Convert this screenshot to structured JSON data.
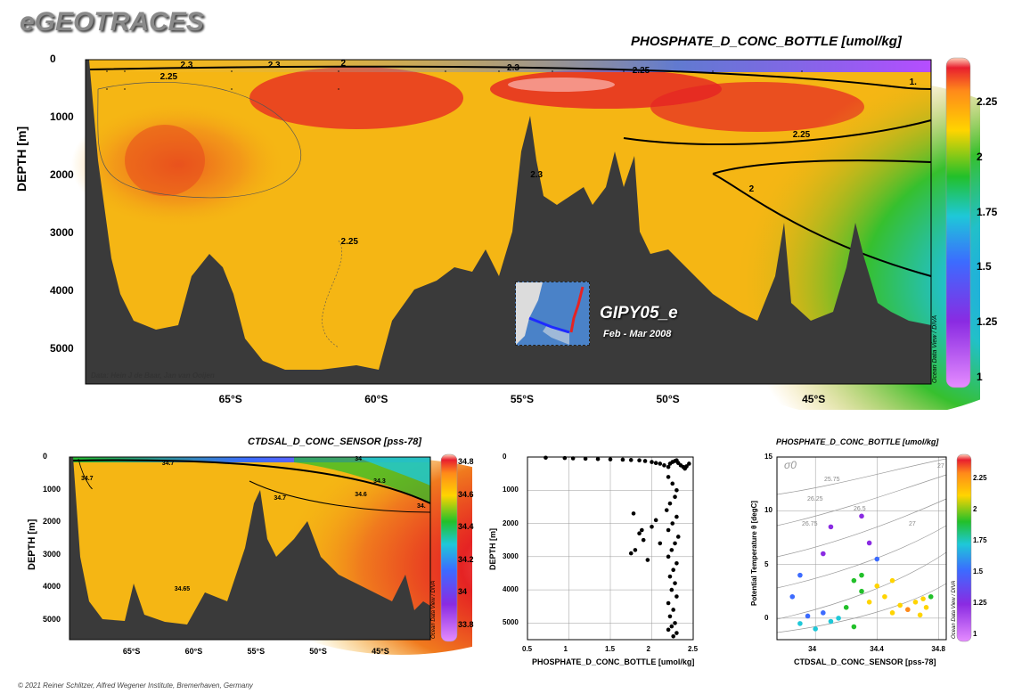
{
  "brand": "eGEOTRACES",
  "credit": "© 2021 Reiner Schlitzer, Alfred Wegener Institute, Bremerhaven, Germany",
  "odv_label": "Ocean Data View / DIVA",
  "colors": {
    "ocean_floor": "#3a3a3a",
    "contour": "#000000",
    "grid": "#222222"
  },
  "main": {
    "title": "PHOSPHATE_D_CONC_BOTTLE [umol/kg]",
    "ylabel": "DEPTH [m]",
    "data_credit": "Data: Hein J de Baar, Jan van Ooijen",
    "inset_label": "GIPY05_e",
    "inset_date": "Feb - Mar 2008"
  },
  "bl": {
    "title": "CTDSAL_D_CONC_SENSOR [pss-78]",
    "ylabel": "DEPTH [m]"
  },
  "bm": {
    "xlabel": "PHOSPHATE_D_CONC_BOTTLE [umol/kg]",
    "ylabel": "DEPTH [m]"
  },
  "br": {
    "title": "PHOSPHATE_D_CONC_BOTTLE [umol/kg]",
    "xlabel": "CTDSAL_D_CONC_SENSOR [pss-78]",
    "ylabel": "Potential Temperature θ [degC]",
    "sigma": "σ0"
  },
  "chart_data": [
    {
      "type": "heatmap",
      "title": "PHOSPHATE_D_CONC_BOTTLE [umol/kg]",
      "ylabel": "DEPTH [m]",
      "x_ticks": [
        "65°S",
        "60°S",
        "55°S",
        "50°S",
        "45°S"
      ],
      "x_values": [
        -65,
        -60,
        -55,
        -50,
        -45
      ],
      "xlim": [
        -70,
        -41
      ],
      "y_ticks": [
        0,
        1000,
        2000,
        3000,
        4000,
        5000
      ],
      "ylim": [
        5600,
        0
      ],
      "colorbar": {
        "ticks": [
          1,
          1.25,
          1.5,
          1.75,
          2,
          2.25
        ],
        "range": [
          0.95,
          2.45
        ]
      },
      "contour_labels": [
        {
          "text": "2.3",
          "lat": -66.5,
          "depth": 100
        },
        {
          "text": "2.25",
          "lat": -67.2,
          "depth": 300
        },
        {
          "text": "2.3",
          "lat": -63.5,
          "depth": 100
        },
        {
          "text": "2",
          "lat": -61,
          "depth": 80
        },
        {
          "text": "2.3",
          "lat": -55.3,
          "depth": 150
        },
        {
          "text": "2.25",
          "lat": -51,
          "depth": 200
        },
        {
          "text": "1.",
          "lat": -41.5,
          "depth": 400
        },
        {
          "text": "2.25",
          "lat": -45.5,
          "depth": 1300
        },
        {
          "text": "2",
          "lat": -47,
          "depth": 2250
        },
        {
          "text": "2.3",
          "lat": -54.5,
          "depth": 2000
        },
        {
          "text": "2.25",
          "lat": -61,
          "depth": 3150
        }
      ]
    },
    {
      "type": "heatmap",
      "title": "CTDSAL_D_CONC_SENSOR [pss-78]",
      "ylabel": "DEPTH [m]",
      "x_ticks": [
        "65°S",
        "60°S",
        "55°S",
        "50°S",
        "45°S"
      ],
      "x_values": [
        -65,
        -60,
        -55,
        -50,
        -45
      ],
      "xlim": [
        -70,
        -41
      ],
      "y_ticks": [
        0,
        1000,
        2000,
        3000,
        4000,
        5000
      ],
      "ylim": [
        5600,
        0
      ],
      "colorbar": {
        "ticks": [
          33.8,
          34,
          34.2,
          34.4,
          34.6,
          34.8
        ],
        "range": [
          33.7,
          34.85
        ]
      },
      "contour_labels": [
        {
          "text": "34.7",
          "lat": -68.5,
          "depth": 700
        },
        {
          "text": "34.7",
          "lat": -62,
          "depth": 250
        },
        {
          "text": "34.7",
          "lat": -53,
          "depth": 1300
        },
        {
          "text": "34.6",
          "lat": -46.5,
          "depth": 1200
        },
        {
          "text": "34.3",
          "lat": -45,
          "depth": 800
        },
        {
          "text": "34",
          "lat": -46.5,
          "depth": 100
        },
        {
          "text": "34.",
          "lat": -41.5,
          "depth": 1550
        },
        {
          "text": "34.65",
          "lat": -61,
          "depth": 4100
        }
      ]
    },
    {
      "type": "scatter",
      "xlabel": "PHOSPHATE_D_CONC_BOTTLE [umol/kg]",
      "ylabel": "DEPTH [m]",
      "x_ticks": [
        0.5,
        1,
        1.5,
        2,
        2.5
      ],
      "xlim": [
        0.5,
        2.5
      ],
      "y_ticks": [
        0,
        1000,
        2000,
        3000,
        4000,
        5000
      ],
      "ylim": [
        5500,
        0
      ],
      "series": [
        {
          "x": [
            0.72,
            0.95,
            1.05,
            1.2,
            1.35,
            1.5,
            1.65,
            1.75,
            1.85,
            1.92,
            2.0,
            2.05,
            2.1,
            2.15,
            2.2,
            2.22,
            2.25,
            2.28,
            2.3,
            2.32,
            2.35,
            2.38,
            2.4,
            2.42,
            2.45
          ],
          "y": [
            20,
            30,
            40,
            50,
            60,
            70,
            80,
            90,
            100,
            120,
            150,
            180,
            200,
            250,
            300,
            200,
            150,
            120,
            100,
            180,
            250,
            300,
            350,
            280,
            200
          ]
        },
        {
          "x": [
            2.2,
            2.25,
            2.3,
            2.28,
            2.22,
            2.18,
            2.3,
            2.25,
            2.2,
            2.32,
            2.28,
            2.24,
            2.2,
            2.3,
            2.26,
            2.22,
            2.28,
            2.24,
            2.3,
            2.2,
            2.26,
            2.22,
            2.28,
            2.24,
            2.2,
            2.3,
            2.26
          ],
          "y": [
            600,
            800,
            1000,
            1200,
            1400,
            1600,
            1800,
            2000,
            2200,
            2400,
            2600,
            2800,
            3000,
            3200,
            3400,
            3600,
            3800,
            4000,
            4200,
            4400,
            4600,
            4800,
            5000,
            5100,
            5200,
            5300,
            5400
          ]
        },
        {
          "x": [
            1.78,
            1.85,
            1.9,
            1.75,
            1.95,
            2.0,
            2.05,
            2.1,
            1.8,
            1.88
          ],
          "y": [
            1700,
            2300,
            2500,
            2900,
            3100,
            2100,
            1900,
            2600,
            2800,
            2200
          ]
        }
      ]
    },
    {
      "type": "scatter",
      "title": "PHOSPHATE_D_CONC_BOTTLE [umol/kg]",
      "xlabel": "CTDSAL_D_CONC_SENSOR [pss-78]",
      "ylabel": "Potential Temperature θ [degC]",
      "x_ticks": [
        34,
        34.4,
        34.8
      ],
      "xlim": [
        33.75,
        34.85
      ],
      "y_ticks": [
        0,
        5,
        10,
        15
      ],
      "ylim": [
        -2,
        15
      ],
      "sigma_labels": [
        "25.75",
        "26.25",
        "26.75",
        "26.5",
        "27",
        "27"
      ],
      "colorbar": {
        "ticks": [
          1,
          1.25,
          1.5,
          1.75,
          2,
          2.25
        ],
        "range": [
          0.95,
          2.45
        ]
      },
      "points": [
        {
          "s": 33.9,
          "t": -0.5,
          "c": 1.75
        },
        {
          "s": 33.95,
          "t": 0.2,
          "c": 1.7
        },
        {
          "s": 34.0,
          "t": -1.0,
          "c": 1.8
        },
        {
          "s": 34.05,
          "t": 0.5,
          "c": 1.65
        },
        {
          "s": 34.1,
          "t": -0.3,
          "c": 1.85
        },
        {
          "s": 34.15,
          "t": 0.0,
          "c": 1.9
        },
        {
          "s": 34.2,
          "t": 1.0,
          "c": 1.95
        },
        {
          "s": 34.25,
          "t": -0.8,
          "c": 2.0
        },
        {
          "s": 34.3,
          "t": 2.5,
          "c": 2.1
        },
        {
          "s": 34.35,
          "t": 1.5,
          "c": 2.15
        },
        {
          "s": 34.4,
          "t": 3.0,
          "c": 2.2
        },
        {
          "s": 34.45,
          "t": 2.0,
          "c": 2.25
        },
        {
          "s": 34.5,
          "t": 0.5,
          "c": 2.3
        },
        {
          "s": 34.55,
          "t": 1.2,
          "c": 2.3
        },
        {
          "s": 34.6,
          "t": 0.8,
          "c": 2.35
        },
        {
          "s": 34.65,
          "t": 1.5,
          "c": 2.3
        },
        {
          "s": 34.7,
          "t": 1.8,
          "c": 2.2
        },
        {
          "s": 34.72,
          "t": 1.0,
          "c": 2.15
        },
        {
          "s": 34.75,
          "t": 2.0,
          "c": 2.05
        },
        {
          "s": 34.68,
          "t": 0.3,
          "c": 2.25
        },
        {
          "s": 34.05,
          "t": 6.0,
          "c": 1.45
        },
        {
          "s": 34.1,
          "t": 8.5,
          "c": 1.4
        },
        {
          "s": 34.3,
          "t": 9.5,
          "c": 1.35
        },
        {
          "s": 34.35,
          "t": 7.0,
          "c": 1.5
        },
        {
          "s": 34.4,
          "t": 5.5,
          "c": 1.6
        },
        {
          "s": 33.9,
          "t": 4.0,
          "c": 1.55
        },
        {
          "s": 33.85,
          "t": 2.0,
          "c": 1.6
        },
        {
          "s": 34.3,
          "t": 4.0,
          "c": 2.1
        },
        {
          "s": 34.25,
          "t": 3.5,
          "c": 2.0
        },
        {
          "s": 34.5,
          "t": 3.5,
          "c": 2.2
        }
      ]
    }
  ]
}
